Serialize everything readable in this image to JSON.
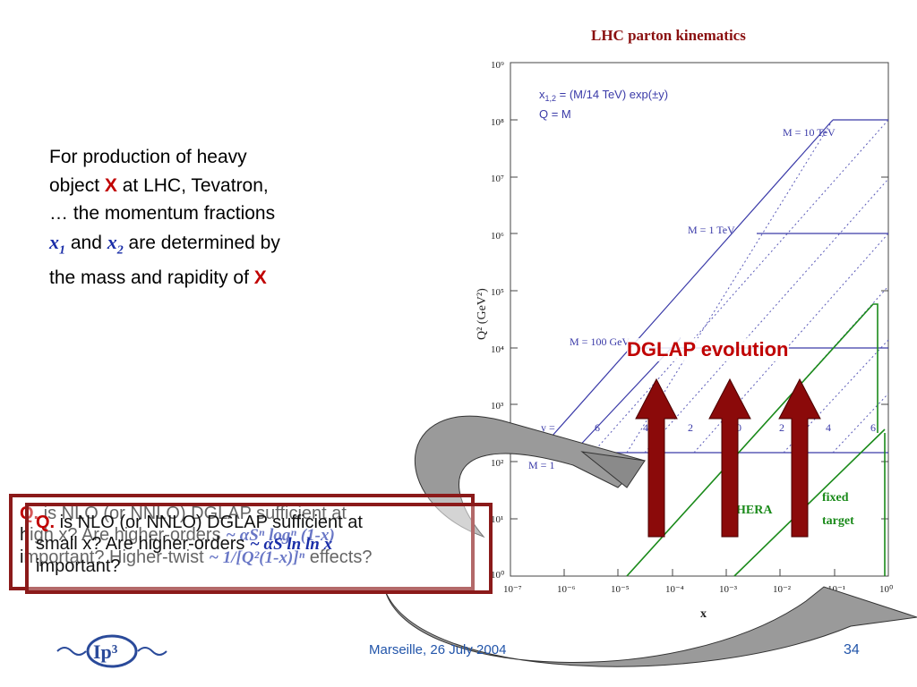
{
  "intro": {
    "line1": "For production of heavy",
    "line2a": "object ",
    "x_bold": "X",
    "line2b": " at LHC, Tevatron,",
    "line3": "… the momentum fractions",
    "x1": "x",
    "x1_sub": "1",
    "and": " and ",
    "x2": "x",
    "x2_sub": "2",
    "line4b": " are determined by",
    "line5a": "the mass and rapidity of ",
    "x_bold2": "X"
  },
  "plot": {
    "title": "LHC parton kinematics",
    "legend_line1": "x",
    "legend_line1_sub": "1,2",
    "legend_line1_rest": " = (M/14 TeV) exp(±y)",
    "legend_line2": "Q = M",
    "ylabel": "Q² (GeV²)",
    "xlabel": "x",
    "y_ticks": [
      "10⁹",
      "10⁸",
      "10⁷",
      "10⁶",
      "10⁵",
      "10⁴",
      "10³",
      "10²",
      "10¹",
      "10⁰"
    ],
    "x_ticks": [
      "10⁻⁷",
      "10⁻⁶",
      "10⁻⁵",
      "10⁻⁴",
      "10⁻³",
      "10⁻²",
      "10⁻¹",
      "10⁰"
    ],
    "mass_labels": [
      "M = 10 TeV",
      "M = 1 TeV",
      "M = 100 GeV",
      "M = 1"
    ],
    "y_prefix": "y =",
    "rapidity_labels": [
      "6",
      "4",
      "2",
      "0",
      "2",
      "4",
      "6"
    ],
    "hera_label": "HERA",
    "fixed_target_label1": "fixed",
    "fixed_target_label2": "target"
  },
  "dglap_label": "DGLAP evolution",
  "question_front": {
    "q": "Q.",
    "text1": " is NLO (or NNLO) DGLAP sufficient at",
    "text2": "small x? Are higher-orders ",
    "formula": "~ αS ln ln x",
    "text3": "important?"
  },
  "question_back": {
    "q": "Q.",
    "text1": " is NLO (or NNLO) DGLAP sufficient at",
    "text2": "high x? Are higher-orders ",
    "formula": "~ αSⁿ logⁿ (1-x)",
    "text3": "important? Higher-twist ",
    "formula2": "~ 1/[Q²(1-x)]ⁿ",
    "text4": " effects?"
  },
  "footer": {
    "logo": "Ip³",
    "date": "Marseille, 26 July 2004",
    "page": "34"
  },
  "colors": {
    "accent_red": "#c00000",
    "arrow_red": "#8b0a0a",
    "plot_blue": "#3a3aa8",
    "hera_green": "#1a8a1a",
    "box_border": "#8b1a1a"
  }
}
